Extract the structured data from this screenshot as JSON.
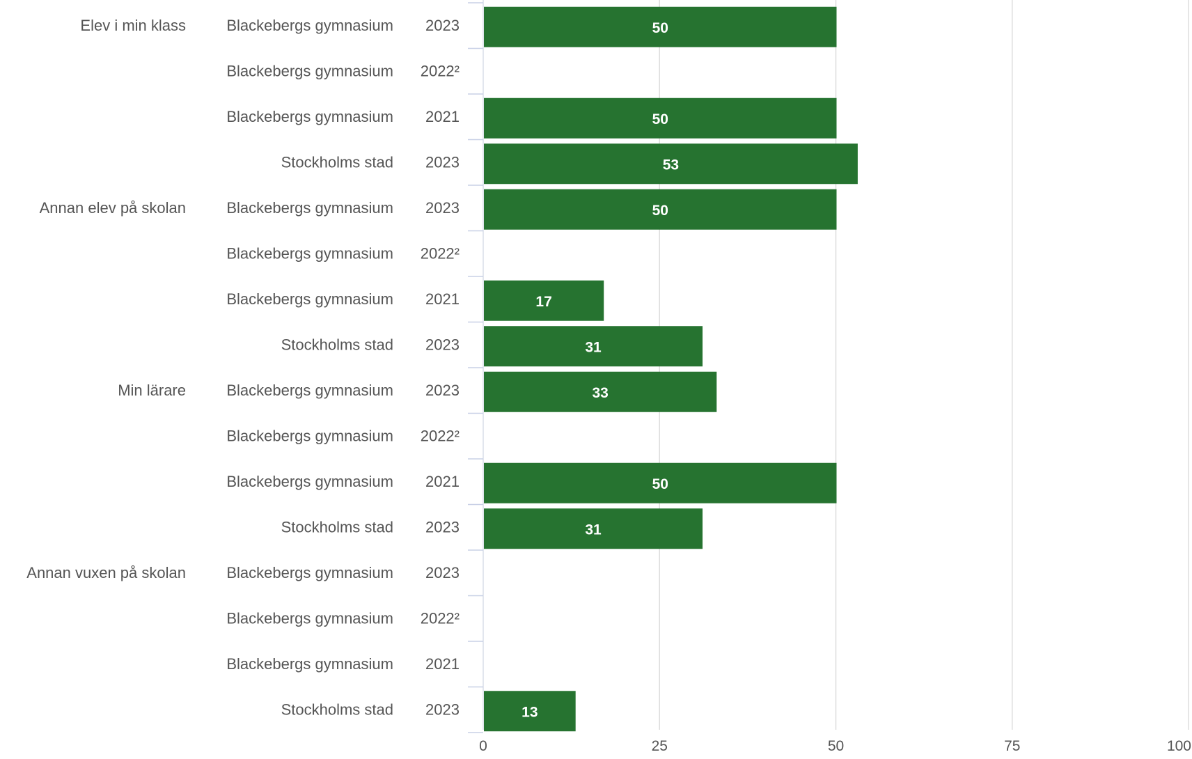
{
  "chart_data": {
    "type": "bar",
    "orientation": "horizontal",
    "title": "",
    "xlabel": "",
    "ylabel": "",
    "xlim": [
      0,
      100
    ],
    "xticks": [
      0,
      25,
      50,
      75,
      100
    ],
    "grid": true,
    "bar_color": "#267330",
    "rows": [
      {
        "group": "Elev i min klass",
        "school": "Blackebergs gymnasium",
        "year": "2023",
        "value": 50
      },
      {
        "group": "",
        "school": "Blackebergs gymnasium",
        "year": "2022²",
        "value": null
      },
      {
        "group": "",
        "school": "Blackebergs gymnasium",
        "year": "2021",
        "value": 50
      },
      {
        "group": "",
        "school": "Stockholms stad",
        "year": "2023",
        "value": 53
      },
      {
        "group": "Annan elev på skolan",
        "school": "Blackebergs gymnasium",
        "year": "2023",
        "value": 50
      },
      {
        "group": "",
        "school": "Blackebergs gymnasium",
        "year": "2022²",
        "value": null
      },
      {
        "group": "",
        "school": "Blackebergs gymnasium",
        "year": "2021",
        "value": 17
      },
      {
        "group": "",
        "school": "Stockholms stad",
        "year": "2023",
        "value": 31
      },
      {
        "group": "Min lärare",
        "school": "Blackebergs gymnasium",
        "year": "2023",
        "value": 33
      },
      {
        "group": "",
        "school": "Blackebergs gymnasium",
        "year": "2022²",
        "value": null
      },
      {
        "group": "",
        "school": "Blackebergs gymnasium",
        "year": "2021",
        "value": 50
      },
      {
        "group": "",
        "school": "Stockholms stad",
        "year": "2023",
        "value": 31
      },
      {
        "group": "Annan vuxen på skolan",
        "school": "Blackebergs gymnasium",
        "year": "2023",
        "value": null
      },
      {
        "group": "",
        "school": "Blackebergs gymnasium",
        "year": "2022²",
        "value": null
      },
      {
        "group": "",
        "school": "Blackebergs gymnasium",
        "year": "2021",
        "value": null
      },
      {
        "group": "",
        "school": "Stockholms stad",
        "year": "2023",
        "value": 13
      }
    ]
  }
}
